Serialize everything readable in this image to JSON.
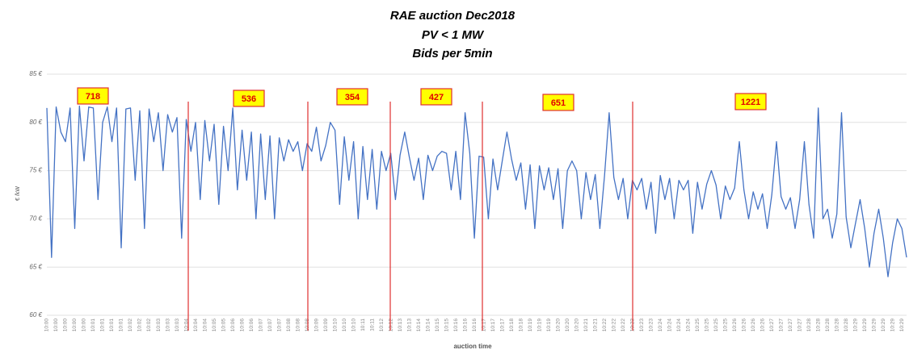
{
  "chart_data": {
    "type": "line",
    "title": [
      "RAE auction Dec2018",
      "PV < 1 MW",
      "Bids per 5min"
    ],
    "y_label": "€ /kW",
    "x_label": "auction time",
    "annotations": [
      "718",
      "536",
      "354",
      "427",
      "651",
      "1221"
    ],
    "ylim": [
      60,
      85
    ],
    "yticks": [
      {
        "value": 60,
        "label": "60 €"
      },
      {
        "value": 65,
        "label": "65 €"
      },
      {
        "value": 70,
        "label": "70 €"
      },
      {
        "value": 75,
        "label": "75 €"
      },
      {
        "value": 80,
        "label": "80 €"
      },
      {
        "value": 85,
        "label": "85 €"
      }
    ],
    "grid": true,
    "categories": [
      "10:00",
      null,
      "10:00",
      null,
      "10:00",
      null,
      "10:00",
      null,
      "10:00",
      null,
      "10:01",
      null,
      "10:01",
      null,
      "10:01",
      null,
      "10:01",
      null,
      "10:02",
      null,
      "10:02",
      null,
      "10:02",
      null,
      "10:03",
      null,
      "10:03",
      null,
      "10:03",
      null,
      "10:04",
      null,
      "10:04",
      null,
      "10:04",
      null,
      "10:05",
      null,
      "10:05",
      null,
      "10:06",
      null,
      "10:06",
      null,
      "10:06",
      null,
      "10:07",
      null,
      "10:07",
      null,
      "10:07",
      null,
      "10:08",
      null,
      "10:08",
      null,
      "10:08",
      null,
      "10:09",
      null,
      "10:09",
      null,
      "10:10",
      null,
      "10:10",
      null,
      "10:10",
      null,
      "10:11",
      null,
      "10:11",
      null,
      "10:12",
      null,
      "10:12",
      null,
      "10:13",
      null,
      "10:13",
      null,
      "10:14",
      null,
      "10:14",
      null,
      "10:15",
      null,
      "10:15",
      null,
      "10:16",
      null,
      "10:16",
      null,
      "10:16",
      null,
      "10:17",
      null,
      "10:17",
      null,
      "10:17",
      null,
      "10:18",
      null,
      "10:18",
      null,
      "10:19",
      null,
      "10:19",
      null,
      "10:19",
      null,
      "10:20",
      null,
      "10:20",
      null,
      "10:20",
      null,
      "10:21",
      null,
      "10:21",
      null,
      "10:22",
      null,
      "10:22",
      null,
      "10:22",
      null,
      "10:23",
      null,
      "10:23",
      null,
      "10:23",
      null,
      "10:24",
      null,
      "10:24",
      null,
      "10:24",
      null,
      "10:24",
      null,
      "10:25",
      null,
      "10:25",
      null,
      "10:25",
      null,
      "10:25",
      null,
      "10:26",
      null,
      "10:26",
      null,
      "10:26",
      null,
      "10:26",
      null,
      "10:27",
      null,
      "10:27",
      null,
      "10:27",
      null,
      "10:27",
      null,
      "10:28",
      null,
      "10:28",
      null,
      "10:28",
      null,
      "10:28",
      null,
      "10:28",
      null,
      "10:29",
      null,
      "10:29",
      null,
      "10:29",
      null,
      "10:29",
      null,
      "10:29",
      null,
      "10:29",
      null
    ],
    "series": [
      {
        "name": "bids",
        "color": "#4472c4",
        "values": [
          81.5,
          66,
          81.6,
          79,
          78,
          81.5,
          69,
          81.7,
          76,
          81.6,
          81.5,
          72,
          80,
          81.6,
          78,
          81.5,
          67,
          81.4,
          81.5,
          74,
          81.2,
          69,
          81.4,
          78,
          81.0,
          75,
          80.8,
          79,
          80.5,
          68,
          80.3,
          77,
          80.0,
          72,
          80.2,
          76,
          79.8,
          71.5,
          79.6,
          75,
          81.5,
          73,
          79.2,
          74,
          79.0,
          70,
          78.8,
          72,
          78.6,
          70,
          78.4,
          76,
          78.2,
          77,
          78.0,
          75,
          77.8,
          77,
          79.5,
          76,
          77.6,
          80,
          79.2,
          71.5,
          78.5,
          74,
          78.0,
          70,
          77.5,
          72,
          77.2,
          71,
          77.0,
          75,
          76.8,
          72,
          76.6,
          79,
          76.4,
          74,
          76.3,
          72,
          76.6,
          75,
          76.5,
          77,
          76.8,
          73,
          77.0,
          72,
          81,
          76.8,
          68,
          76.5,
          76.4,
          70,
          76.2,
          73,
          76.0,
          79,
          76.2,
          74,
          75.8,
          71,
          75.6,
          69,
          75.5,
          73,
          75.3,
          72,
          75.2,
          69,
          75.0,
          76,
          75.0,
          70,
          74.8,
          72,
          74.6,
          69,
          74.5,
          81,
          74.3,
          72,
          74.2,
          70,
          74.0,
          73,
          74.2,
          71,
          73.8,
          68.5,
          74.5,
          72,
          74.2,
          70,
          74.0,
          73,
          74.0,
          68.5,
          73.8,
          71,
          73.6,
          75,
          73.5,
          70,
          73.4,
          72,
          73.2,
          78,
          73.0,
          70,
          72.8,
          71,
          72.6,
          69,
          72.5,
          78,
          72.3,
          71,
          72.2,
          69,
          72.0,
          78,
          71.5,
          68,
          81.5,
          70,
          71.0,
          68,
          70.5,
          81,
          70.2,
          67,
          69.5,
          72,
          69.0,
          65,
          68.5,
          71,
          68.0,
          64,
          67.5,
          70,
          69.0,
          66
        ]
      }
    ]
  }
}
